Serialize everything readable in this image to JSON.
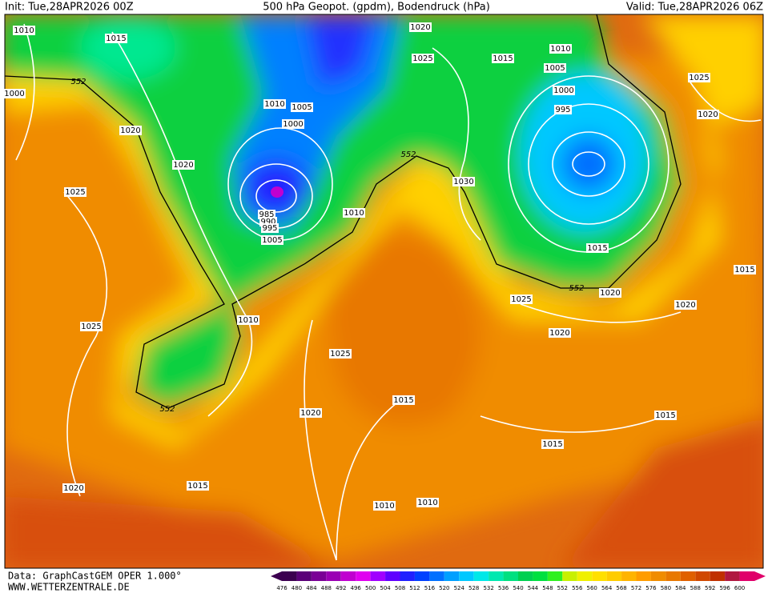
{
  "header": {
    "init": "Init: Tue,28APR2026 00Z",
    "title": "500 hPa Geopot. (gpdm), Bodendruck (hPa)",
    "valid": "Valid: Tue,28APR2026 06Z"
  },
  "footer": {
    "data": "Data: GraphCastGEM OPER 1.000°",
    "site": "WWW.WETTERZENTRALE.DE"
  },
  "legend": {
    "values": [
      "476",
      "480",
      "484",
      "488",
      "492",
      "496",
      "500",
      "504",
      "508",
      "512",
      "516",
      "520",
      "524",
      "528",
      "532",
      "536",
      "540",
      "544",
      "548",
      "552",
      "556",
      "560",
      "564",
      "568",
      "572",
      "576",
      "580",
      "584",
      "588",
      "592",
      "596",
      "600"
    ],
    "colors": [
      "#3c0050",
      "#5a0078",
      "#7a0096",
      "#9a00b4",
      "#c000d0",
      "#e000f0",
      "#a000ff",
      "#6000ff",
      "#2020ff",
      "#0040ff",
      "#0070ff",
      "#00a0ff",
      "#00c8ff",
      "#00e8e8",
      "#00e8b0",
      "#00e080",
      "#00d050",
      "#00e040",
      "#30f020",
      "#c8f000",
      "#f0f000",
      "#ffe000",
      "#ffcc00",
      "#ffb400",
      "#ff9c00",
      "#f08c00",
      "#e87800",
      "#e06000",
      "#d04800",
      "#c03000",
      "#b01840",
      "#e0006a"
    ]
  },
  "isobar_labels": [
    "1010",
    "1015",
    "1020",
    "1025",
    "1015",
    "1010",
    "1005",
    "1000",
    "995",
    "1025",
    "1020",
    "552",
    "1000",
    "1010",
    "1005",
    "1000",
    "1020",
    "1020",
    "552",
    "1030",
    "1025",
    "1010",
    "985",
    "990",
    "995",
    "1005",
    "1015",
    "552",
    "1020",
    "1025",
    "1020",
    "1015",
    "1010",
    "1025",
    "1025",
    "1020",
    "1015",
    "552",
    "1020",
    "1015",
    "1015",
    "1020",
    "1015",
    "1010",
    "1010"
  ]
}
